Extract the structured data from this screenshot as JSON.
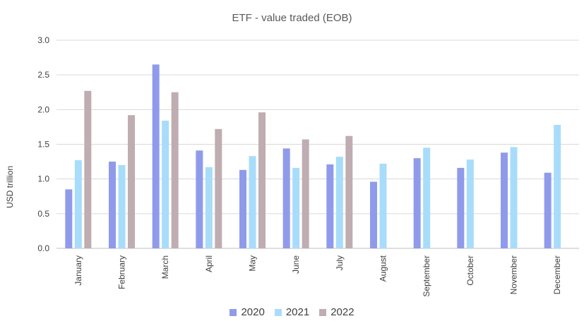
{
  "chart_data": {
    "type": "bar",
    "title": "ETF - value traded (EOB)",
    "ylabel": "USD trillion",
    "xlabel": "",
    "ylim": [
      0,
      3.0
    ],
    "yticks": [
      "0.0",
      "0.5",
      "1.0",
      "1.5",
      "2.0",
      "2.5",
      "3.0"
    ],
    "categories": [
      "January",
      "February",
      "March",
      "April",
      "May",
      "June",
      "July",
      "August",
      "September",
      "October",
      "November",
      "December"
    ],
    "series": [
      {
        "name": "2020",
        "color": "#8f9bea",
        "values": [
          0.85,
          1.25,
          2.65,
          1.41,
          1.13,
          1.44,
          1.21,
          0.96,
          1.3,
          1.16,
          1.38,
          1.09
        ]
      },
      {
        "name": "2021",
        "color": "#a8dcfb",
        "values": [
          1.27,
          1.2,
          1.84,
          1.17,
          1.33,
          1.16,
          1.32,
          1.22,
          1.45,
          1.28,
          1.46,
          1.78
        ]
      },
      {
        "name": "2022",
        "color": "#bfadb2",
        "values": [
          2.27,
          1.92,
          2.25,
          1.72,
          1.96,
          1.57,
          1.62,
          null,
          null,
          null,
          null,
          null
        ]
      }
    ],
    "grid": true,
    "legend_position": "bottom"
  }
}
